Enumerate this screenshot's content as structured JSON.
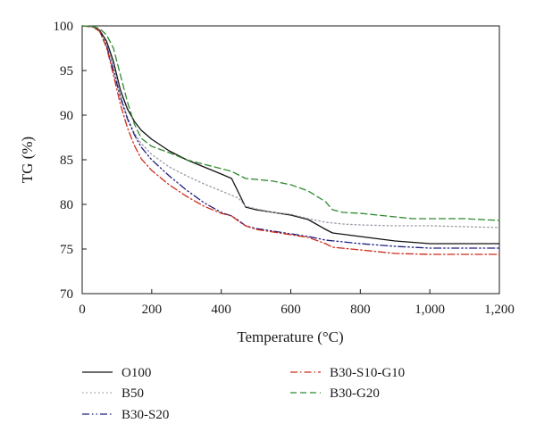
{
  "chart_data": {
    "type": "line",
    "xlabel": "Temperature (°C)",
    "ylabel": "TG (%)",
    "xlim": [
      0,
      1200
    ],
    "ylim": [
      70,
      100
    ],
    "xticks": [
      0,
      200,
      400,
      600,
      800,
      1000,
      1200
    ],
    "xtick_labels": [
      "0",
      "200",
      "400",
      "600",
      "800",
      "1,000",
      "1,200"
    ],
    "yticks": [
      70,
      75,
      80,
      85,
      90,
      95,
      100
    ],
    "ytick_labels": [
      "70",
      "75",
      "80",
      "85",
      "90",
      "95",
      "100"
    ],
    "grid": false,
    "legend_position": "below",
    "series": [
      {
        "name": "O100",
        "color": "#111111",
        "dash": "solid",
        "points": [
          [
            0,
            100
          ],
          [
            30,
            99.9
          ],
          [
            50,
            99.5
          ],
          [
            70,
            98.3
          ],
          [
            90,
            96
          ],
          [
            110,
            92.8
          ],
          [
            130,
            90.7
          ],
          [
            150,
            89.3
          ],
          [
            170,
            88.3
          ],
          [
            200,
            87.3
          ],
          [
            250,
            86
          ],
          [
            300,
            85
          ],
          [
            350,
            84.2
          ],
          [
            400,
            83.4
          ],
          [
            430,
            82.9
          ],
          [
            450,
            81.3
          ],
          [
            470,
            79.7
          ],
          [
            500,
            79.4
          ],
          [
            550,
            79.1
          ],
          [
            600,
            78.8
          ],
          [
            650,
            78.3
          ],
          [
            700,
            77.2
          ],
          [
            720,
            76.8
          ],
          [
            800,
            76.4
          ],
          [
            900,
            75.9
          ],
          [
            1000,
            75.6
          ],
          [
            1100,
            75.6
          ],
          [
            1200,
            75.6
          ]
        ]
      },
      {
        "name": "B50",
        "color": "#9a9aa8",
        "dash": "dot",
        "points": [
          [
            0,
            100
          ],
          [
            30,
            99.9
          ],
          [
            50,
            99.4
          ],
          [
            70,
            98
          ],
          [
            90,
            95.5
          ],
          [
            110,
            92.3
          ],
          [
            130,
            89.8
          ],
          [
            150,
            88
          ],
          [
            170,
            86.8
          ],
          [
            200,
            85.6
          ],
          [
            250,
            84.2
          ],
          [
            300,
            83.2
          ],
          [
            350,
            82.3
          ],
          [
            400,
            81.5
          ],
          [
            450,
            80.7
          ],
          [
            470,
            79.8
          ],
          [
            500,
            79.5
          ],
          [
            550,
            79.1
          ],
          [
            600,
            78.9
          ],
          [
            650,
            78.4
          ],
          [
            700,
            78
          ],
          [
            750,
            77.8
          ],
          [
            800,
            77.7
          ],
          [
            900,
            77.6
          ],
          [
            1000,
            77.6
          ],
          [
            1100,
            77.5
          ],
          [
            1200,
            77.4
          ]
        ]
      },
      {
        "name": "B30-S20",
        "color": "#1f1f80",
        "dash": "dashdotdot",
        "points": [
          [
            0,
            100
          ],
          [
            30,
            99.9
          ],
          [
            50,
            99.4
          ],
          [
            70,
            97.8
          ],
          [
            90,
            95
          ],
          [
            110,
            92
          ],
          [
            130,
            89.6
          ],
          [
            150,
            87.8
          ],
          [
            170,
            86.4
          ],
          [
            200,
            85
          ],
          [
            250,
            83.2
          ],
          [
            300,
            81.6
          ],
          [
            350,
            80.2
          ],
          [
            400,
            79.1
          ],
          [
            430,
            78.7
          ],
          [
            450,
            78.2
          ],
          [
            470,
            77.6
          ],
          [
            500,
            77.3
          ],
          [
            550,
            77
          ],
          [
            600,
            76.7
          ],
          [
            650,
            76.4
          ],
          [
            700,
            76
          ],
          [
            750,
            75.8
          ],
          [
            800,
            75.6
          ],
          [
            900,
            75.3
          ],
          [
            1000,
            75.1
          ],
          [
            1100,
            75.1
          ],
          [
            1200,
            75.1
          ]
        ]
      },
      {
        "name": "B30-S10-G10",
        "color": "#cc2a1a",
        "dash": "dashdot",
        "points": [
          [
            0,
            100
          ],
          [
            30,
            99.9
          ],
          [
            50,
            99.4
          ],
          [
            70,
            97.6
          ],
          [
            90,
            94.5
          ],
          [
            110,
            91.2
          ],
          [
            130,
            88.6
          ],
          [
            150,
            86.6
          ],
          [
            170,
            85.1
          ],
          [
            200,
            83.8
          ],
          [
            250,
            82.2
          ],
          [
            300,
            80.9
          ],
          [
            350,
            79.8
          ],
          [
            400,
            79
          ],
          [
            430,
            78.7
          ],
          [
            450,
            78.1
          ],
          [
            470,
            77.6
          ],
          [
            500,
            77.2
          ],
          [
            550,
            76.9
          ],
          [
            600,
            76.6
          ],
          [
            650,
            76.3
          ],
          [
            700,
            75.6
          ],
          [
            720,
            75.2
          ],
          [
            800,
            74.9
          ],
          [
            900,
            74.5
          ],
          [
            1000,
            74.4
          ],
          [
            1100,
            74.4
          ],
          [
            1200,
            74.4
          ]
        ]
      },
      {
        "name": "B30-G20",
        "color": "#2f8a2f",
        "dash": "dash",
        "points": [
          [
            0,
            100
          ],
          [
            30,
            99.95
          ],
          [
            50,
            99.7
          ],
          [
            70,
            99
          ],
          [
            90,
            97.5
          ],
          [
            110,
            94.5
          ],
          [
            130,
            91.5
          ],
          [
            150,
            89
          ],
          [
            170,
            87.4
          ],
          [
            200,
            86.5
          ],
          [
            250,
            85.8
          ],
          [
            300,
            85
          ],
          [
            350,
            84.5
          ],
          [
            400,
            84
          ],
          [
            430,
            83.7
          ],
          [
            450,
            83.3
          ],
          [
            470,
            82.9
          ],
          [
            500,
            82.8
          ],
          [
            550,
            82.6
          ],
          [
            600,
            82.2
          ],
          [
            650,
            81.5
          ],
          [
            700,
            80.3
          ],
          [
            720,
            79.4
          ],
          [
            750,
            79.1
          ],
          [
            800,
            79
          ],
          [
            900,
            78.6
          ],
          [
            950,
            78.4
          ],
          [
            1000,
            78.4
          ],
          [
            1100,
            78.4
          ],
          [
            1200,
            78.2
          ]
        ]
      }
    ]
  }
}
